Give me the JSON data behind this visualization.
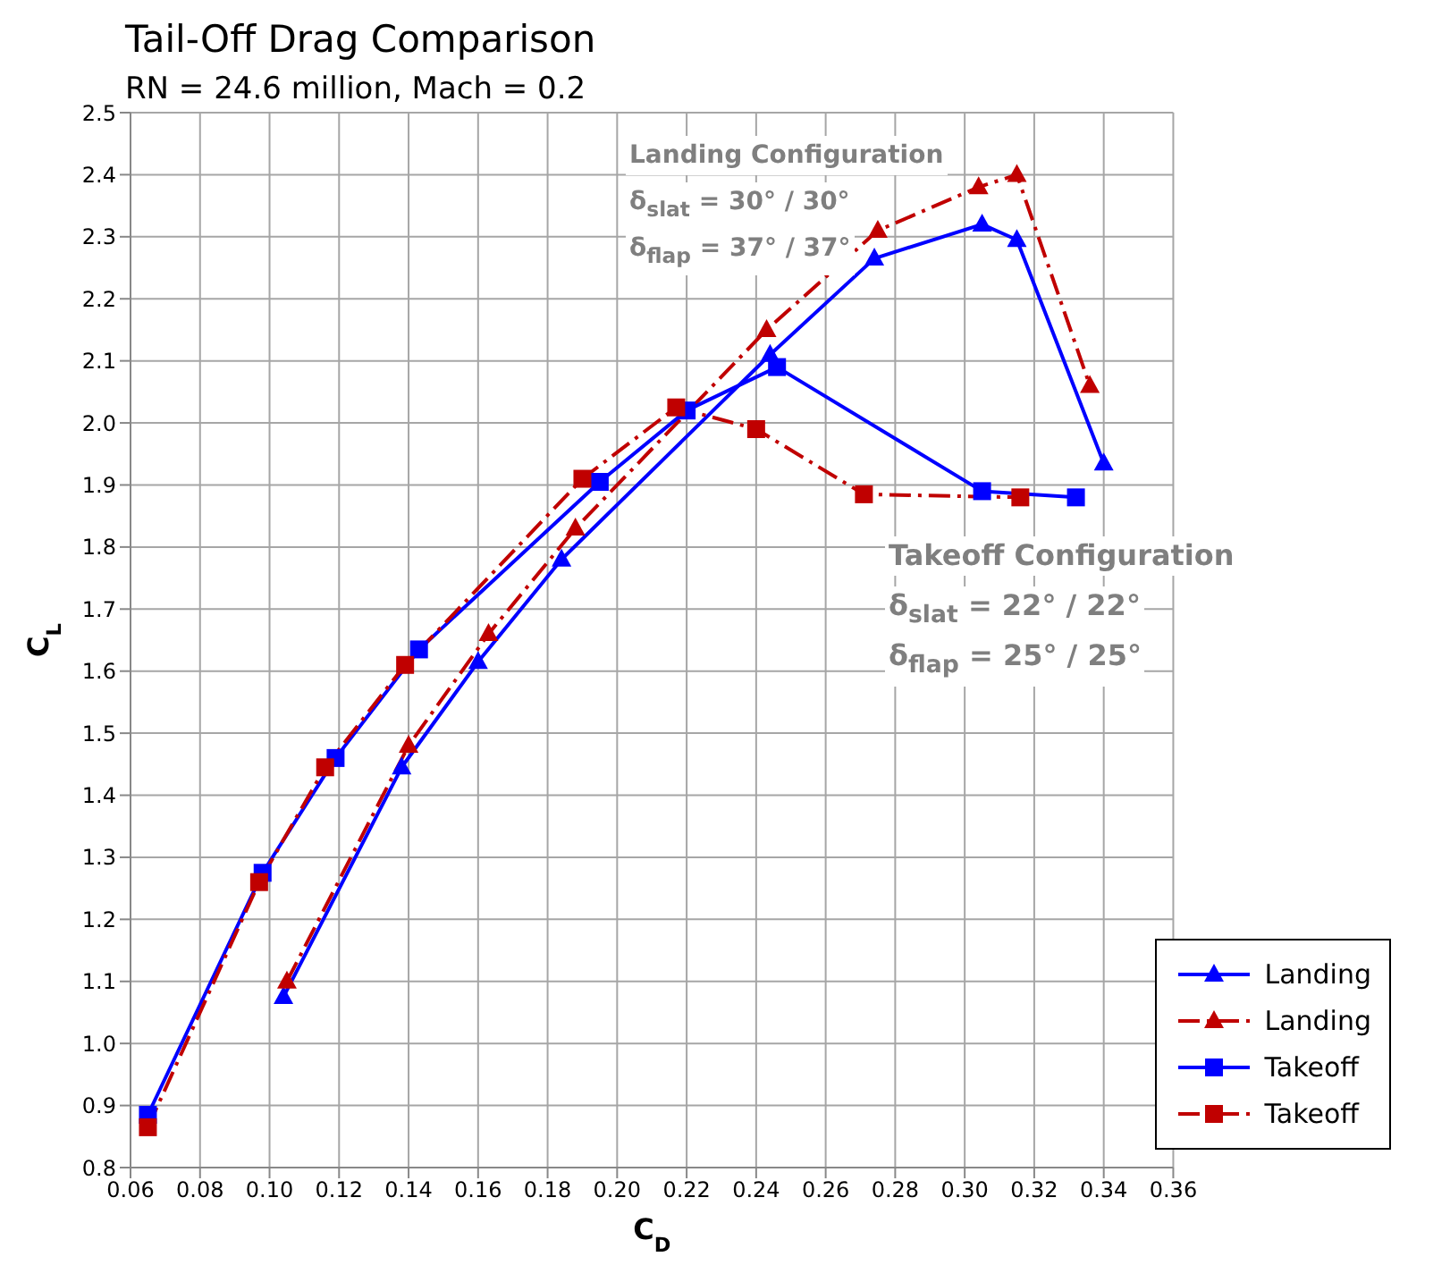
{
  "chart_data": {
    "type": "line",
    "title": "Tail-Off Drag Comparison",
    "subtitle": "RN = 24.6 million, Mach = 0.2",
    "xlabel": "C$_{D}$",
    "ylabel": "C$_{L}$",
    "xlim": [
      0.06,
      0.36
    ],
    "xticks": [
      0.06,
      0.08,
      {
        "value": 0.1,
        "label": "0.10"
      },
      0.12,
      0.14,
      0.16,
      0.18,
      {
        "value": 0.2,
        "label": "0.20"
      },
      0.22,
      0.24,
      0.26,
      0.28,
      {
        "value": 0.3,
        "label": "0.30"
      },
      0.32,
      0.34,
      0.36
    ],
    "ylim": [
      0.8,
      2.5
    ],
    "yticks": [
      0.8,
      0.9,
      {
        "value": 1,
        "label": "1.0"
      },
      1.1,
      1.2,
      1.3,
      1.4,
      1.5,
      1.6,
      1.7,
      1.8,
      1.9,
      {
        "value": 2,
        "label": "2.0"
      },
      2.1,
      2.2,
      2.3,
      2.4,
      2.5
    ],
    "grid": true,
    "legend": "bottom right",
    "annotations": [
      "Landing Configuration",
      "δ$_{slat}$ = 30° / 30°",
      "δ$_{flap}$ = 37° / 37°",
      "Takeoff Configuration",
      "δ$_{slat}$ = 22° / 22°",
      "δ$_{flap}$ = 25° / 25°"
    ],
    "series": [
      {
        "name": "Landing",
        "color": "#0000ff",
        "marker": "triangle",
        "line_style": "solid",
        "x": [
          0.104,
          0.138,
          0.16,
          0.184,
          0.244,
          0.274,
          0.305,
          0.315,
          0.34
        ],
        "values": [
          1.075,
          1.445,
          1.615,
          1.78,
          2.11,
          2.265,
          2.32,
          2.295,
          1.935
        ]
      },
      {
        "name": "Landing",
        "color": "#c00000",
        "marker": "triangle",
        "line_style": "dashed",
        "x": [
          0.105,
          0.14,
          0.163,
          0.188,
          0.243,
          0.275,
          0.304,
          0.315,
          0.336
        ],
        "values": [
          1.1,
          1.48,
          1.66,
          1.83,
          2.15,
          2.31,
          2.38,
          2.4,
          2.06
        ]
      },
      {
        "name": "Takeoff",
        "color": "#0000ff",
        "marker": "square",
        "line_style": "solid",
        "x": [
          0.065,
          0.098,
          0.119,
          0.143,
          0.195,
          0.22,
          0.246,
          0.305,
          0.332
        ],
        "values": [
          0.885,
          1.275,
          1.46,
          1.635,
          1.905,
          2.02,
          2.09,
          1.89,
          1.88
        ]
      },
      {
        "name": "Takeoff",
        "color": "#c00000",
        "marker": "square",
        "line_style": "dashed",
        "x": [
          0.065,
          0.097,
          0.116,
          0.139,
          0.19,
          0.217,
          0.24,
          0.271,
          0.316
        ],
        "values": [
          0.865,
          1.26,
          1.445,
          1.61,
          1.91,
          2.025,
          1.99,
          1.885,
          1.88
        ]
      }
    ]
  }
}
